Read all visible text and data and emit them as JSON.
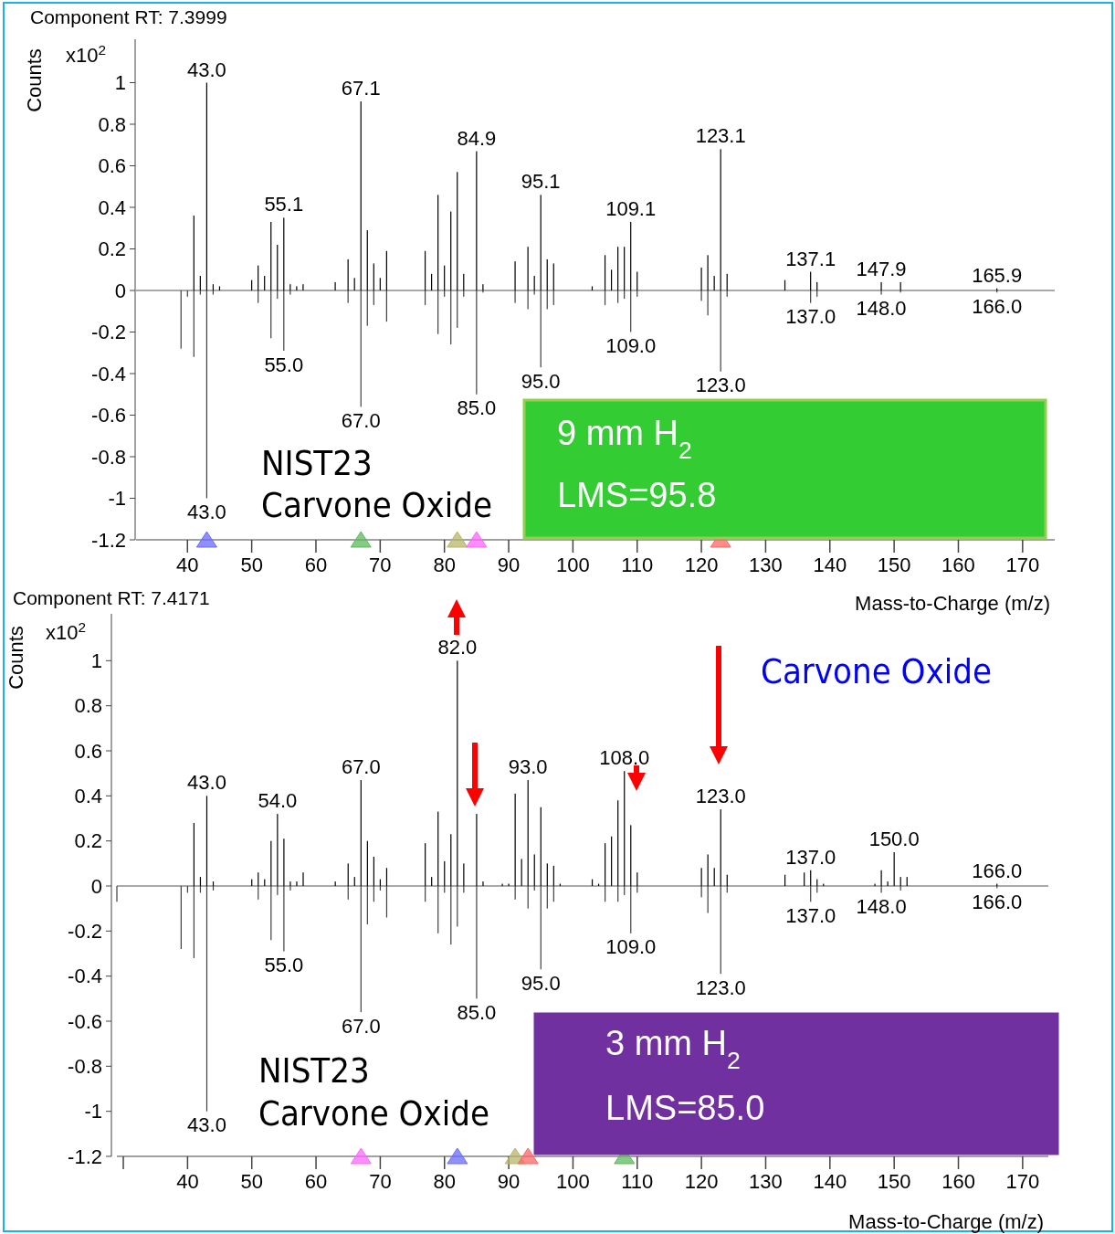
{
  "chart_data": [
    {
      "type": "bar",
      "title": "Component RT: 7.3999",
      "xlabel": "Mass-to-Charge (m/z)",
      "ylabel": "Counts",
      "xlim": [
        32,
        175
      ],
      "xticks": [
        40,
        50,
        60,
        70,
        80,
        90,
        100,
        110,
        120,
        130,
        140,
        150,
        160,
        170
      ],
      "ylim": [
        -1.2,
        1.2
      ],
      "yticks": [
        -1.2,
        -1,
        -0.8,
        -0.6,
        -0.4,
        -0.2,
        0,
        0.2,
        0.4,
        0.6,
        0.8,
        1
      ],
      "series": [
        {
          "color": "#000000",
          "x": [
            41,
            42,
            43,
            44,
            45,
            50,
            51,
            52,
            53,
            54,
            55,
            56,
            57,
            58,
            63,
            65,
            66,
            67,
            68,
            69,
            70,
            71,
            77,
            78,
            79,
            80,
            81,
            82,
            83,
            85,
            86,
            91,
            93,
            94,
            95,
            96,
            97,
            103,
            105,
            106,
            107,
            108,
            109,
            110,
            120,
            121,
            122,
            123,
            124,
            133,
            137,
            138,
            148,
            151,
            166
          ],
          "values": [
            0.36,
            0.07,
            1.0,
            0.03,
            0.02,
            0.05,
            0.12,
            0.07,
            0.33,
            0.22,
            0.35,
            0.03,
            0.02,
            0.03,
            0.04,
            0.15,
            0.06,
            0.91,
            0.29,
            0.13,
            0.06,
            0.19,
            0.19,
            0.08,
            0.46,
            0.12,
            0.38,
            0.57,
            0.08,
            0.67,
            0.03,
            0.14,
            0.21,
            0.07,
            0.46,
            0.15,
            0.13,
            0.02,
            0.17,
            0.1,
            0.21,
            0.21,
            0.33,
            0.09,
            0.11,
            0.17,
            0.07,
            0.68,
            0.08,
            0.05,
            0.09,
            0.04,
            0.04,
            0.04,
            0.01
          ]
        },
        {
          "color": "#404040",
          "x": [
            39,
            40,
            41,
            42,
            43,
            44,
            51,
            53,
            54,
            55,
            56,
            65,
            67,
            68,
            69,
            71,
            77,
            79,
            80,
            81,
            82,
            83,
            85,
            86,
            91,
            93,
            94,
            95,
            96,
            97,
            105,
            107,
            108,
            109,
            110,
            120,
            121,
            123,
            124,
            137,
            138,
            148,
            151,
            166
          ],
          "values": [
            -0.28,
            -0.03,
            -0.32,
            -0.02,
            -1.0,
            -0.02,
            -0.06,
            -0.23,
            -0.04,
            -0.29,
            -0.02,
            -0.06,
            -0.56,
            -0.17,
            -0.07,
            -0.15,
            -0.07,
            -0.21,
            -0.03,
            -0.26,
            -0.18,
            -0.03,
            -0.5,
            -0.01,
            -0.06,
            -0.09,
            -0.02,
            -0.37,
            -0.09,
            -0.07,
            -0.07,
            -0.06,
            -0.04,
            -0.2,
            -0.03,
            -0.05,
            -0.12,
            -0.39,
            -0.03,
            -0.06,
            -0.03,
            -0.02,
            -0.01,
            -0.01
          ]
        }
      ],
      "annotations": [
        "x10$^{2}$",
        "NIST23",
        "Carvone Oxide",
        "9 mm H$_{2}$",
        "LMS=95.8",
        {
          "text": "43.0",
          "x": 43,
          "y": 1.0
        },
        {
          "text": "55.1",
          "x": 55,
          "y": 0.35
        },
        {
          "text": "67.1",
          "x": 67,
          "y": 0.91
        },
        {
          "text": "84.9",
          "x": 85,
          "y": 0.67
        },
        {
          "text": "95.1",
          "x": 95,
          "y": 0.46
        },
        {
          "text": "109.1",
          "x": 109,
          "y": 0.33
        },
        {
          "text": "123.1",
          "x": 123,
          "y": 0.68
        },
        {
          "text": "137.1",
          "x": 137,
          "y": 0.09
        },
        {
          "text": "147.9",
          "x": 148,
          "y": 0.04
        },
        {
          "text": "165.9",
          "x": 166,
          "y": 0.01
        },
        {
          "text": "43.0",
          "x": 43,
          "y": -1.0
        },
        {
          "text": "55.0",
          "x": 55,
          "y": -0.29
        },
        {
          "text": "67.0",
          "x": 67,
          "y": -0.56
        },
        {
          "text": "85.0",
          "x": 85,
          "y": -0.5
        },
        {
          "text": "95.0",
          "x": 95,
          "y": -0.37
        },
        {
          "text": "109.0",
          "x": 109,
          "y": -0.2
        },
        {
          "text": "123.0",
          "x": 123,
          "y": -0.39
        },
        {
          "text": "137.0",
          "x": 137,
          "y": -0.06
        },
        {
          "text": "148.0",
          "x": 148,
          "y": -0.02
        },
        {
          "text": "166.0",
          "x": 166,
          "y": -0.01
        }
      ]
    },
    {
      "type": "bar",
      "title": "Component RT: 7.4171",
      "xlabel": "Mass-to-Charge (m/z)",
      "ylabel": "Counts",
      "xlim": [
        29,
        174
      ],
      "xticks": [
        {
          "value": 30,
          "label": null
        },
        40,
        50,
        60,
        70,
        80,
        90,
        100,
        110,
        120,
        130,
        140,
        150,
        160,
        170
      ],
      "ylim": [
        -1.2,
        1.2
      ],
      "yticks": [
        -1.2,
        -1,
        -0.8,
        -0.6,
        -0.4,
        -0.2,
        0,
        0.2,
        0.4,
        0.6,
        0.8,
        1
      ],
      "series": [
        {
          "color": "#000000",
          "x": [
            41,
            42,
            43,
            44,
            50,
            51,
            52,
            53,
            54,
            55,
            56,
            57,
            58,
            63,
            65,
            66,
            67,
            68,
            69,
            70,
            71,
            77,
            78,
            79,
            80,
            81,
            82,
            83,
            85,
            86,
            89,
            90,
            91,
            92,
            93,
            94,
            95,
            96,
            97,
            98,
            103,
            104,
            105,
            106,
            107,
            108,
            109,
            110,
            120,
            121,
            122,
            123,
            124,
            133,
            136,
            137,
            138,
            139,
            147,
            148,
            149,
            150,
            151,
            152,
            166
          ],
          "values": [
            0.28,
            0.04,
            0.4,
            0.02,
            0.03,
            0.06,
            0.03,
            0.2,
            0.32,
            0.21,
            0.02,
            0.02,
            0.06,
            0.02,
            0.1,
            0.04,
            0.47,
            0.2,
            0.13,
            0.03,
            0.08,
            0.19,
            0.04,
            0.33,
            0.11,
            0.23,
            1.0,
            0.1,
            0.32,
            0.02,
            0.01,
            0.01,
            0.41,
            0.12,
            0.47,
            0.14,
            0.35,
            0.1,
            0.09,
            0.01,
            0.03,
            0.01,
            0.19,
            0.22,
            0.38,
            0.51,
            0.27,
            0.06,
            0.08,
            0.14,
            0.08,
            0.34,
            0.05,
            0.05,
            0.06,
            0.07,
            0.03,
            0.01,
            0.01,
            0.07,
            0.02,
            0.15,
            0.04,
            0.04,
            0.01
          ]
        },
        {
          "color": "#404040",
          "x": [
            29,
            39,
            40,
            41,
            42,
            43,
            44,
            51,
            53,
            54,
            55,
            56,
            65,
            67,
            68,
            69,
            70,
            71,
            77,
            79,
            80,
            81,
            82,
            83,
            85,
            91,
            93,
            94,
            95,
            96,
            97,
            105,
            107,
            108,
            109,
            110,
            120,
            121,
            123,
            124,
            137,
            138,
            148,
            151,
            166
          ],
          "values": [
            -0.07,
            -0.28,
            -0.03,
            -0.32,
            -0.03,
            -1.0,
            -0.02,
            -0.06,
            -0.24,
            -0.04,
            -0.29,
            -0.02,
            -0.06,
            -0.56,
            -0.17,
            -0.07,
            -0.02,
            -0.14,
            -0.07,
            -0.21,
            -0.03,
            -0.26,
            -0.18,
            -0.03,
            -0.5,
            -0.06,
            -0.1,
            -0.02,
            -0.37,
            -0.1,
            -0.07,
            -0.07,
            -0.07,
            -0.04,
            -0.21,
            -0.03,
            -0.05,
            -0.12,
            -0.39,
            -0.03,
            -0.07,
            -0.03,
            -0.03,
            -0.02,
            -0.01
          ]
        }
      ],
      "annotations": [
        "x10$^{2}$",
        "NIST23",
        "Carvone Oxide",
        "3 mm H$_{2}$",
        "LMS=85.0",
        "Carvone Oxide",
        {
          "text": "43.0",
          "x": 43,
          "y": 0.4
        },
        {
          "text": "54.0",
          "x": 54,
          "y": 0.32
        },
        {
          "text": "67.0",
          "x": 67,
          "y": 0.47
        },
        {
          "text": "82.0",
          "x": 82,
          "y": 1.0
        },
        {
          "text": "93.0",
          "x": 93,
          "y": 0.47
        },
        {
          "text": "108.0",
          "x": 108,
          "y": 0.51
        },
        {
          "text": "123.0",
          "x": 123,
          "y": 0.34
        },
        {
          "text": "137.0",
          "x": 137,
          "y": 0.07
        },
        {
          "text": "150.0",
          "x": 150,
          "y": 0.15
        },
        {
          "text": "166.0",
          "x": 166,
          "y": 0.01
        },
        {
          "text": "43.0",
          "x": 43,
          "y": -1.0
        },
        {
          "text": "55.0",
          "x": 55,
          "y": -0.29
        },
        {
          "text": "67.0",
          "x": 67,
          "y": -0.56
        },
        {
          "text": "85.0",
          "x": 85,
          "y": -0.5
        },
        {
          "text": "95.0",
          "x": 95,
          "y": -0.37
        },
        {
          "text": "109.0",
          "x": 109,
          "y": -0.21
        },
        {
          "text": "123.0",
          "x": 123,
          "y": -0.39
        },
        {
          "text": "137.0",
          "x": 137,
          "y": -0.07
        },
        {
          "text": "148.0",
          "x": 148,
          "y": -0.03
        },
        {
          "text": "166.0",
          "x": 166,
          "y": -0.01
        }
      ]
    }
  ]
}
